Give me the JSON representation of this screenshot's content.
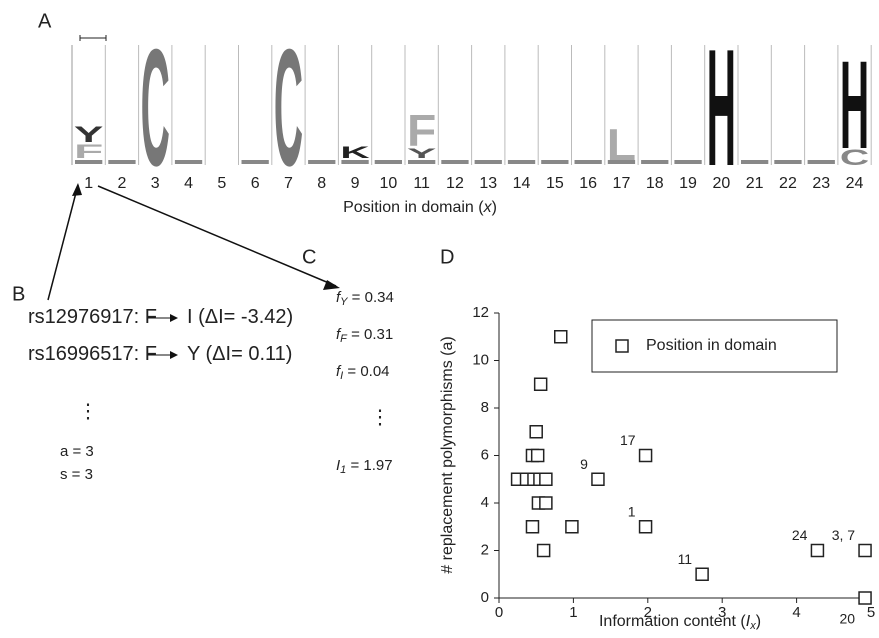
{
  "panel_labels": [
    "A",
    "B",
    "C",
    "D"
  ],
  "logo": {
    "positions": [
      "1",
      "2",
      "3",
      "4",
      "5",
      "6",
      "7",
      "8",
      "9",
      "10",
      "11",
      "12",
      "13",
      "14",
      "15",
      "16",
      "17",
      "18",
      "19",
      "20",
      "21",
      "22",
      "23",
      "24"
    ],
    "letters": [
      "F",
      "Y",
      "C",
      "C",
      "K",
      "Y",
      "F",
      "L",
      "H",
      "H",
      "C"
    ],
    "xlabel": [
      "Position in domain (",
      "x",
      ")"
    ]
  },
  "panel_b": {
    "lines": [
      [
        "rs12976917: F",
        "I (ΔI= -3.42)"
      ],
      [
        "rs16996517: F",
        "Y (ΔI= 0.11)"
      ]
    ],
    "ellipsis": "⋮",
    "counts": [
      "a = 3",
      "s = 3"
    ]
  },
  "panel_c": {
    "freqs": [
      [
        "f",
        "Y",
        " = 0.34"
      ],
      [
        "f",
        "F",
        " = 0.31"
      ],
      [
        "f",
        "I",
        "  = 0.04"
      ]
    ],
    "ellipsis": "⋮",
    "info": [
      "I",
      "1",
      " = 1.97"
    ]
  },
  "chart_data": {
    "type": "scatter",
    "x": [
      0.25,
      0.37,
      0.47,
      0.55,
      0.63,
      0.45,
      0.52,
      0.5,
      0.56,
      0.83,
      0.53,
      0.63,
      0.45,
      0.98,
      0.6,
      1.33,
      1.97,
      1.97,
      2.73,
      4.28,
      4.92,
      4.92
    ],
    "values": [
      5,
      5,
      5,
      5,
      5,
      6,
      6,
      7,
      9,
      11,
      4,
      4,
      3,
      3,
      2,
      5,
      6,
      3,
      1,
      2,
      2,
      0
    ],
    "point_labels": [
      null,
      null,
      null,
      null,
      null,
      null,
      null,
      null,
      null,
      null,
      null,
      null,
      null,
      null,
      null,
      "9",
      "17",
      "1",
      "11",
      "24",
      "3, 7",
      "20"
    ],
    "xlim": [
      0,
      5
    ],
    "xticks": [
      0,
      1,
      2,
      3,
      4,
      5
    ],
    "ylim": [
      0,
      12
    ],
    "yticks": [
      0,
      2,
      4,
      6,
      8,
      10,
      12
    ],
    "ylabel": "# replacement polymorphisms (a)",
    "xlabel": [
      "Information content (",
      "I",
      "x",
      ")"
    ],
    "legend": "Position in domain",
    "color": "#222"
  }
}
